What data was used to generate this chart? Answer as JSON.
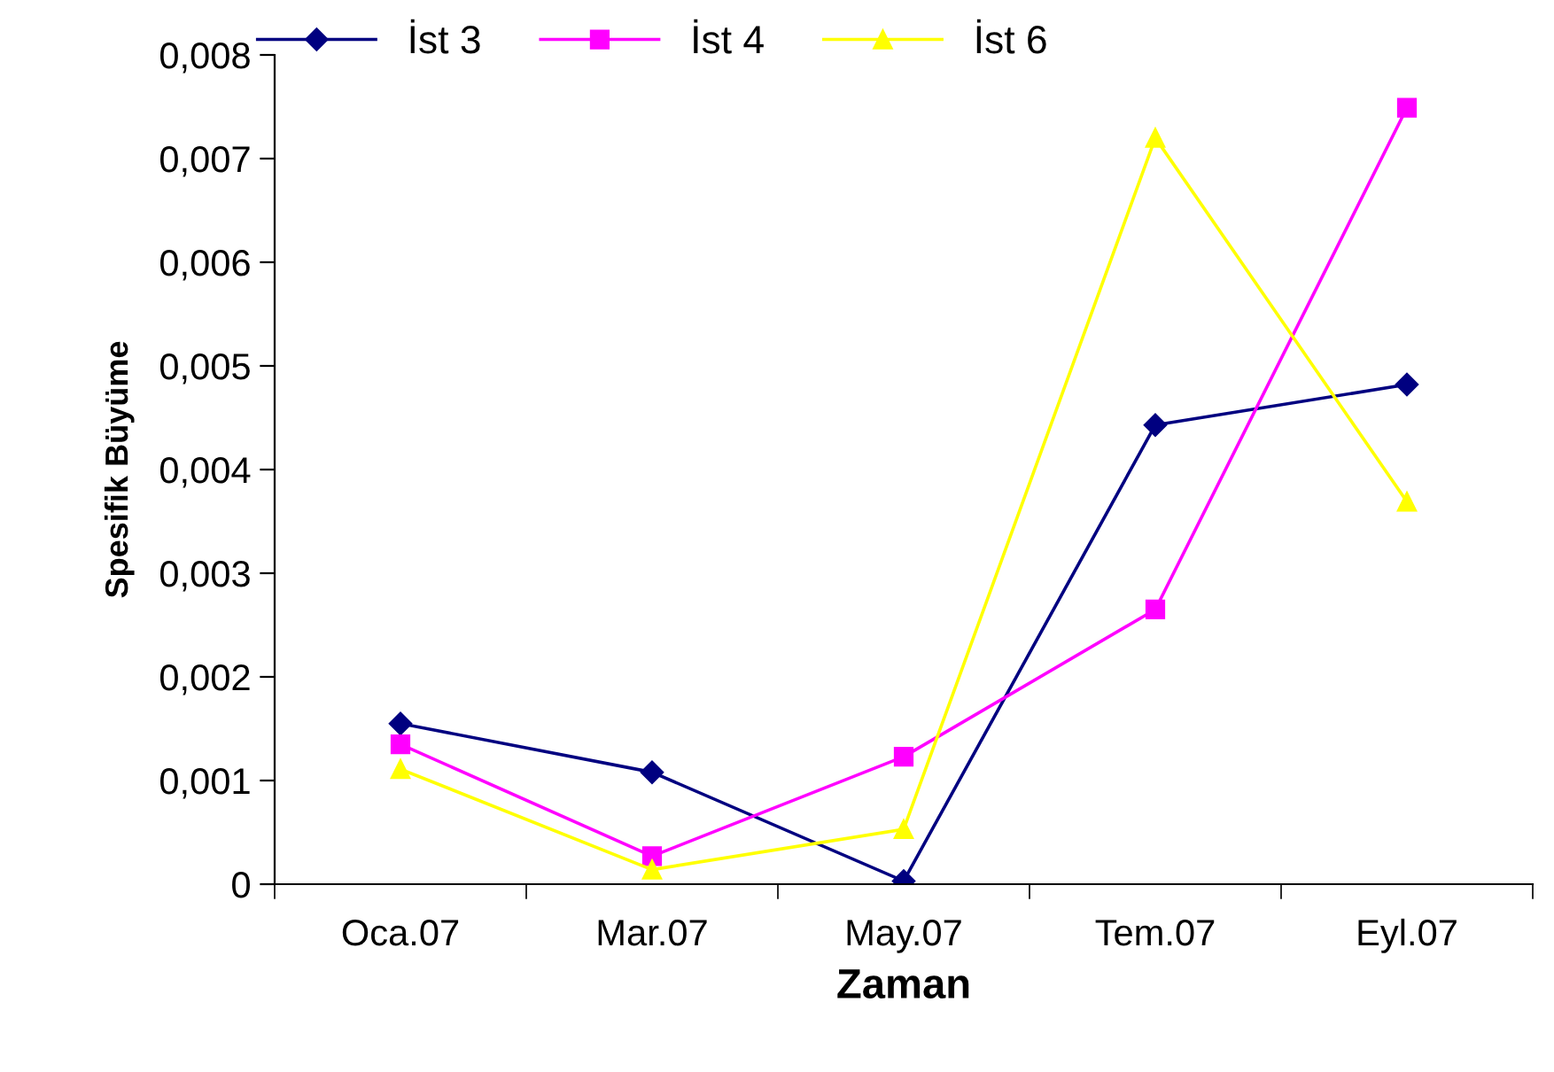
{
  "chart_data": {
    "type": "line",
    "xlabel": "Zaman",
    "ylabel": "Spesifik Büyüme",
    "categories": [
      "Oca.07",
      "Mar.07",
      "May.07",
      "Tem.07",
      "Eyl.07"
    ],
    "series": [
      {
        "name": "İst 3",
        "color": "#000080",
        "marker": "diamond",
        "values": [
          0.00155,
          0.00108,
          3e-05,
          0.00443,
          0.00482
        ]
      },
      {
        "name": "İst 4",
        "color": "#ff00ff",
        "marker": "square",
        "values": [
          0.00135,
          0.00027,
          0.00123,
          0.00265,
          0.00749
        ]
      },
      {
        "name": "İst 6",
        "color": "#ffff00",
        "marker": "triangle",
        "values": [
          0.00111,
          0.00014,
          0.00053,
          0.0072,
          0.00369
        ]
      }
    ],
    "ylim": [
      0,
      0.008
    ],
    "yticks": [
      0,
      {
        "value": 0.001,
        "label": "0,001"
      },
      {
        "value": 0.002,
        "label": "0,002"
      },
      {
        "value": 0.003,
        "label": "0,003"
      },
      {
        "value": 0.004,
        "label": "0,004"
      },
      {
        "value": 0.005,
        "label": "0,005"
      },
      {
        "value": 0.006,
        "label": "0,006"
      },
      {
        "value": 0.007,
        "label": "0,007"
      },
      {
        "value": 0.008,
        "label": "0,008"
      }
    ],
    "grid": false,
    "legend": "top",
    "line_style": "solid"
  }
}
